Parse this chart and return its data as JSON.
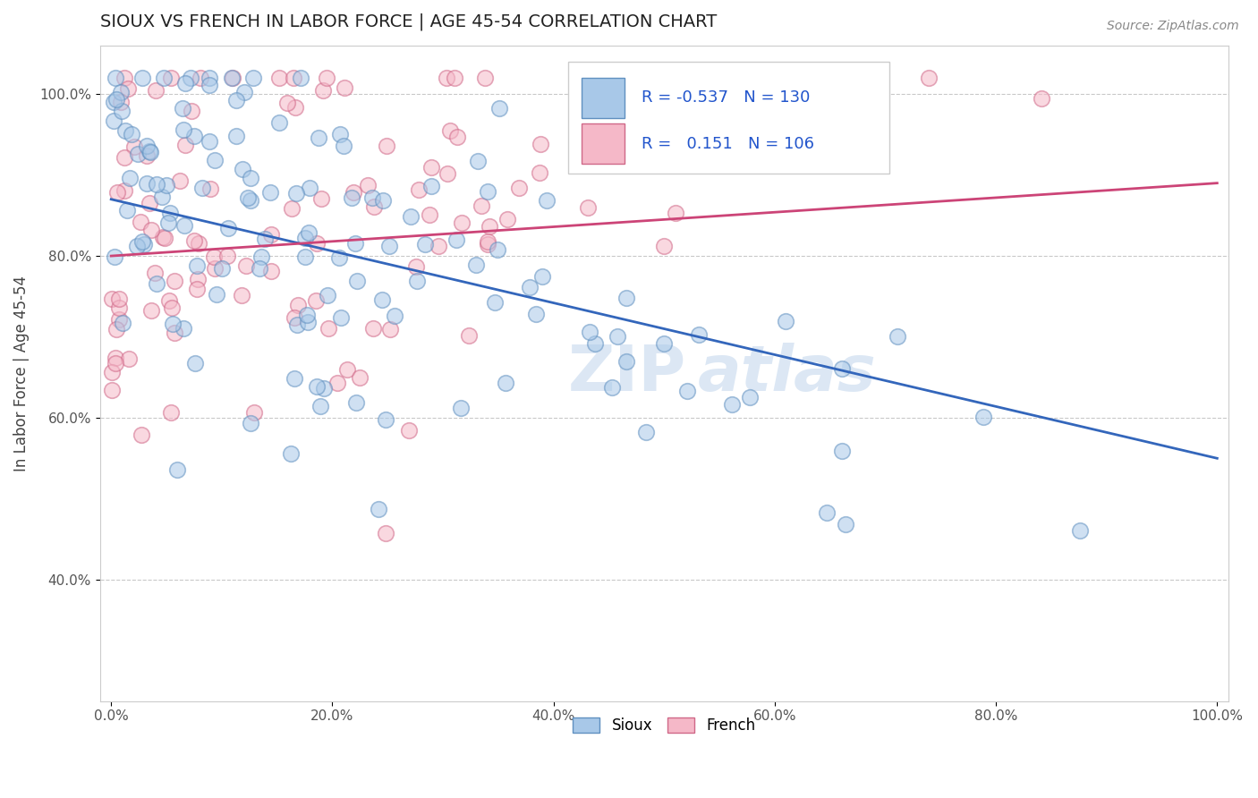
{
  "title": "SIOUX VS FRENCH IN LABOR FORCE | AGE 45-54 CORRELATION CHART",
  "source_text": "Source: ZipAtlas.com",
  "ylabel": "In Labor Force | Age 45-54",
  "xlim": [
    -0.01,
    1.01
  ],
  "ylim": [
    0.25,
    1.06
  ],
  "xticks": [
    0.0,
    0.2,
    0.4,
    0.6,
    0.8,
    1.0
  ],
  "xticklabels": [
    "0.0%",
    "20.0%",
    "40.0%",
    "60.0%",
    "80.0%",
    "100.0%"
  ],
  "yticks": [
    0.4,
    0.6,
    0.8,
    1.0
  ],
  "yticklabels": [
    "40.0%",
    "60.0%",
    "80.0%",
    "100.0%"
  ],
  "sioux_color": "#a8c8e8",
  "french_color": "#f5b8c8",
  "sioux_edge_color": "#6090c0",
  "french_edge_color": "#d06888",
  "trend_sioux_color": "#3366bb",
  "trend_french_color": "#cc4477",
  "legend_sioux_label": "Sioux",
  "legend_french_label": "French",
  "R_sioux": -0.537,
  "N_sioux": 130,
  "R_french": 0.151,
  "N_french": 106,
  "watermark_zip": "ZIP",
  "watermark_atlas": "atlas",
  "background_color": "#ffffff",
  "grid_color": "#bbbbbb",
  "title_fontsize": 14,
  "tick_fontsize": 11,
  "ylabel_fontsize": 12,
  "source_fontsize": 10,
  "stats_fontsize": 13,
  "legend_fontsize": 12,
  "dot_size": 160,
  "dot_alpha": 0.55,
  "dot_linewidth": 1.2,
  "trend_linewidth": 2.0
}
